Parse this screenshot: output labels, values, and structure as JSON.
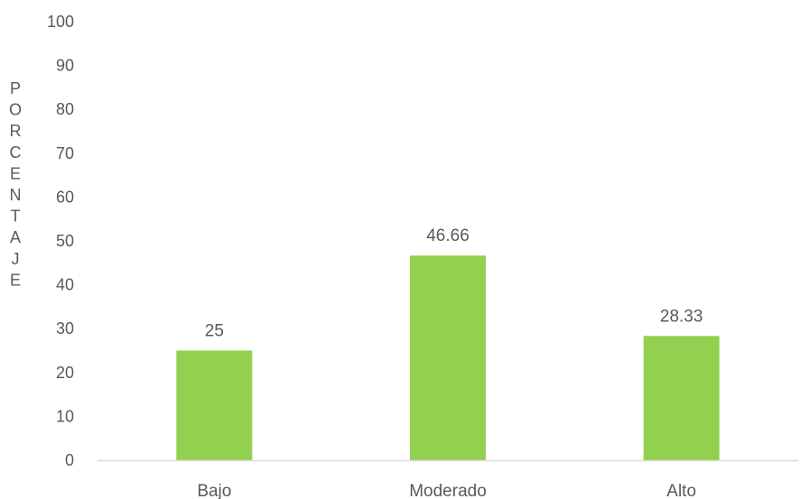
{
  "chart_data": {
    "type": "bar",
    "categories": [
      "Bajo",
      "Moderado",
      "Alto"
    ],
    "values": [
      25,
      46.66,
      28.33
    ],
    "data_labels": [
      "25",
      "46.66",
      "28.33"
    ],
    "title": "",
    "xlabel": "",
    "ylabel": "PORCENTAJE",
    "ylim": [
      0,
      100
    ],
    "y_ticks": [
      "0",
      "10",
      "20",
      "30",
      "40",
      "50",
      "60",
      "70",
      "80",
      "90",
      "100"
    ],
    "grid": false,
    "legend": "none",
    "bar_color": "#92D050",
    "axis_color": "#D9D9D9",
    "text_color": "#595959"
  }
}
